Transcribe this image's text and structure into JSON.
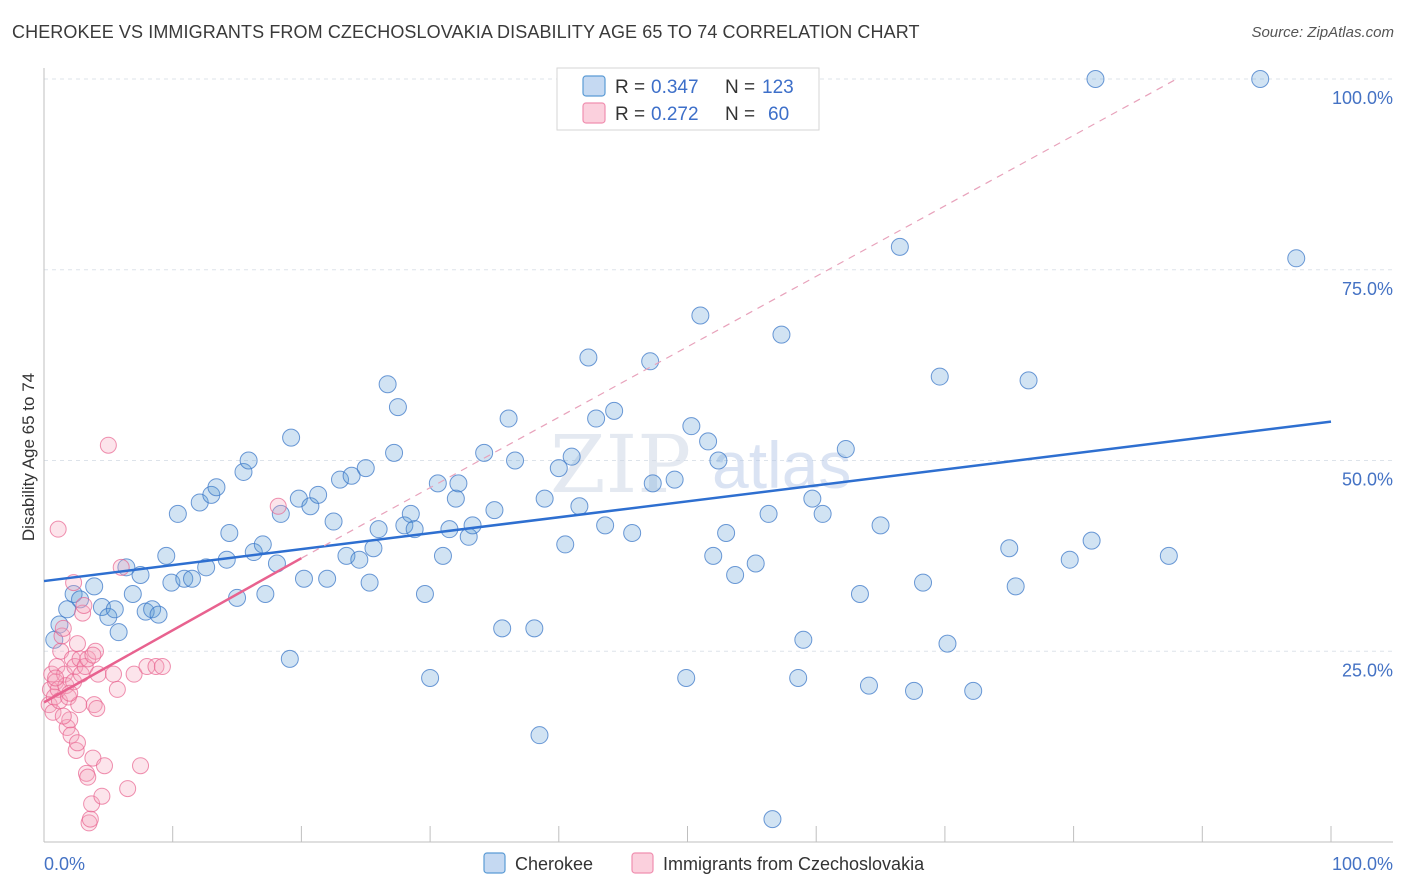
{
  "title": "CHEROKEE VS IMMIGRANTS FROM CZECHOSLOVAKIA DISABILITY AGE 65 TO 74 CORRELATION CHART",
  "source": "Source: ZipAtlas.com",
  "watermark": {
    "a": "ZIP",
    "b": "atlas"
  },
  "legend_box": {
    "rows": [
      {
        "r_label": "R =",
        "r_value": "0.347",
        "n_label": "N =",
        "n_value": "123",
        "color": "#5b9bd5"
      },
      {
        "r_label": "R =",
        "r_value": "0.272",
        "n_label": "N =",
        "n_value": "60",
        "color": "#f4a6bd"
      }
    ]
  },
  "bottom_legend": [
    {
      "label": "Cherokee",
      "color": "#5b9bd5"
    },
    {
      "label": "Immigrants from Czechoslovakia",
      "color": "#f4a6bd"
    }
  ],
  "colors": {
    "blue": "#5b9bd5",
    "blue_line": "#2e6fd0",
    "pink": "#f08fb0",
    "pink_line": "#e8628f",
    "grid": "#dde3ea"
  },
  "chart_data": {
    "type": "scatter",
    "title": "CHEROKEE VS IMMIGRANTS FROM CZECHOSLOVAKIA DISABILITY AGE 65 TO 74 CORRELATION CHART",
    "xlabel": "",
    "ylabel": "Disability Age 65 to 74",
    "xlim": [
      0,
      100
    ],
    "ylim": [
      0,
      100
    ],
    "x_tick_labels": [
      "0.0%",
      "100.0%"
    ],
    "y_tick_labels": [
      "25.0%",
      "50.0%",
      "75.0%",
      "100.0%"
    ],
    "y_ticks": [
      25,
      50,
      75,
      100
    ],
    "grid": true,
    "legend_position": "top-center",
    "series": [
      {
        "name": "Cherokee",
        "color": "#5b9bd5",
        "R": 0.347,
        "N": 123,
        "trend": {
          "x": [
            0,
            100
          ],
          "y": [
            34.2,
            55.1
          ]
        },
        "points": [
          [
            0.8,
            26.5
          ],
          [
            1.2,
            28.5
          ],
          [
            1.8,
            30.5
          ],
          [
            2.3,
            32.5
          ],
          [
            2.8,
            31.8
          ],
          [
            3.9,
            33.5
          ],
          [
            4.5,
            30.8
          ],
          [
            5,
            29.5
          ],
          [
            5.5,
            30.5
          ],
          [
            5.8,
            27.5
          ],
          [
            6.4,
            36
          ],
          [
            6.9,
            32.5
          ],
          [
            7.5,
            35
          ],
          [
            7.9,
            30.2
          ],
          [
            8.4,
            30.5
          ],
          [
            8.9,
            29.8
          ],
          [
            9.5,
            37.5
          ],
          [
            9.9,
            34
          ],
          [
            10.4,
            43
          ],
          [
            10.9,
            34.5
          ],
          [
            11.5,
            34.5
          ],
          [
            12.1,
            44.5
          ],
          [
            12.6,
            36
          ],
          [
            13,
            45.5
          ],
          [
            13.4,
            46.5
          ],
          [
            14.2,
            37
          ],
          [
            14.4,
            40.5
          ],
          [
            15,
            32
          ],
          [
            15.5,
            48.5
          ],
          [
            15.9,
            50
          ],
          [
            16.3,
            38
          ],
          [
            17,
            39
          ],
          [
            17.2,
            32.5
          ],
          [
            18.1,
            36.5
          ],
          [
            18.4,
            43
          ],
          [
            19.1,
            24
          ],
          [
            19.2,
            53
          ],
          [
            19.8,
            45
          ],
          [
            20.2,
            34.5
          ],
          [
            20.7,
            44
          ],
          [
            21.3,
            45.5
          ],
          [
            22,
            34.5
          ],
          [
            22.5,
            42
          ],
          [
            23,
            47.5
          ],
          [
            23.5,
            37.5
          ],
          [
            23.9,
            48
          ],
          [
            24.5,
            37
          ],
          [
            25,
            49
          ],
          [
            25.3,
            34
          ],
          [
            25.6,
            38.5
          ],
          [
            26,
            41
          ],
          [
            26.7,
            60
          ],
          [
            27.2,
            51
          ],
          [
            27.5,
            57
          ],
          [
            28,
            41.5
          ],
          [
            28.5,
            43
          ],
          [
            28.8,
            41
          ],
          [
            29.6,
            32.5
          ],
          [
            30,
            21.5
          ],
          [
            30.6,
            47
          ],
          [
            31,
            37.5
          ],
          [
            31.5,
            41
          ],
          [
            32,
            45
          ],
          [
            32.2,
            47
          ],
          [
            33,
            40
          ],
          [
            33.3,
            41.5
          ],
          [
            34.2,
            51
          ],
          [
            35,
            43.5
          ],
          [
            35.6,
            28
          ],
          [
            36.1,
            55.5
          ],
          [
            36.6,
            50
          ],
          [
            38.1,
            28
          ],
          [
            38.5,
            14
          ],
          [
            38.9,
            45
          ],
          [
            40,
            49
          ],
          [
            40.5,
            39
          ],
          [
            41,
            50.5
          ],
          [
            41.6,
            44
          ],
          [
            42.3,
            63.5
          ],
          [
            42.9,
            55.5
          ],
          [
            43.6,
            41.5
          ],
          [
            44.3,
            56.5
          ],
          [
            45.7,
            40.5
          ],
          [
            47.1,
            63
          ],
          [
            47.3,
            47
          ],
          [
            49,
            47.5
          ],
          [
            49.9,
            21.5
          ],
          [
            50.3,
            54.5
          ],
          [
            51,
            69
          ],
          [
            51.6,
            52.5
          ],
          [
            52,
            37.5
          ],
          [
            52.4,
            50
          ],
          [
            53,
            40.5
          ],
          [
            53.7,
            35
          ],
          [
            55.3,
            36.5
          ],
          [
            56.3,
            43
          ],
          [
            56.6,
            3
          ],
          [
            57.3,
            66.5
          ],
          [
            58.6,
            21.5
          ],
          [
            59,
            26.5
          ],
          [
            59.7,
            45
          ],
          [
            60.5,
            43
          ],
          [
            62.3,
            51.5
          ],
          [
            63.4,
            32.5
          ],
          [
            64.1,
            20.5
          ],
          [
            65,
            41.5
          ],
          [
            66.5,
            78
          ],
          [
            67.6,
            19.8
          ],
          [
            68.3,
            34
          ],
          [
            69.6,
            61
          ],
          [
            70.2,
            26
          ],
          [
            72.2,
            19.8
          ],
          [
            75,
            38.5
          ],
          [
            75.5,
            33.5
          ],
          [
            76.5,
            60.5
          ],
          [
            79.7,
            37
          ],
          [
            81.4,
            39.5
          ],
          [
            81.7,
            100
          ],
          [
            87.4,
            37.5
          ],
          [
            94.5,
            100
          ],
          [
            97.3,
            76.5
          ]
        ]
      },
      {
        "name": "Immigrants from Czechoslovakia",
        "color": "#f4a6bd",
        "R": 0.272,
        "N": 60,
        "trend": {
          "x": [
            0,
            20
          ],
          "y": [
            18.3,
            37.2
          ]
        },
        "trend_dashed": {
          "x": [
            20,
            88
          ],
          "y": [
            37.2,
            100
          ]
        },
        "points": [
          [
            0.4,
            18
          ],
          [
            0.5,
            20
          ],
          [
            0.6,
            22
          ],
          [
            0.7,
            17
          ],
          [
            0.8,
            19
          ],
          [
            0.9,
            21
          ],
          [
            1.0,
            23
          ],
          [
            1.1,
            20
          ],
          [
            1.2,
            18.5
          ],
          [
            1.3,
            25
          ],
          [
            1.4,
            27
          ],
          [
            1.5,
            28
          ],
          [
            1.6,
            22
          ],
          [
            1.7,
            20.5
          ],
          [
            1.8,
            15
          ],
          [
            1.9,
            19
          ],
          [
            2.0,
            16
          ],
          [
            2.1,
            14
          ],
          [
            2.2,
            24
          ],
          [
            2.3,
            21
          ],
          [
            2.4,
            23
          ],
          [
            2.5,
            12
          ],
          [
            2.6,
            26
          ],
          [
            2.7,
            18
          ],
          [
            2.8,
            24
          ],
          [
            2.9,
            22
          ],
          [
            3.0,
            30
          ],
          [
            3.1,
            31
          ],
          [
            3.2,
            23
          ],
          [
            3.3,
            9
          ],
          [
            3.4,
            24
          ],
          [
            3.5,
            2.5
          ],
          [
            3.6,
            3
          ],
          [
            3.7,
            5
          ],
          [
            3.8,
            11
          ],
          [
            3.9,
            18
          ],
          [
            4.0,
            25
          ],
          [
            4.2,
            22
          ],
          [
            4.5,
            6
          ],
          [
            4.7,
            10
          ],
          [
            5.0,
            52
          ],
          [
            5.4,
            22
          ],
          [
            5.7,
            20
          ],
          [
            6.0,
            36
          ],
          [
            6.5,
            7
          ],
          [
            7.0,
            22
          ],
          [
            7.5,
            10
          ],
          [
            8.0,
            23
          ],
          [
            8.7,
            23
          ],
          [
            9.2,
            23
          ],
          [
            1.1,
            41
          ],
          [
            2.3,
            34
          ],
          [
            3.8,
            24.5
          ],
          [
            0.9,
            21.5
          ],
          [
            1.5,
            16.5
          ],
          [
            2.0,
            19.5
          ],
          [
            4.1,
            17.5
          ],
          [
            3.4,
            8.5
          ],
          [
            18.2,
            44
          ],
          [
            2.6,
            13
          ]
        ]
      }
    ]
  }
}
